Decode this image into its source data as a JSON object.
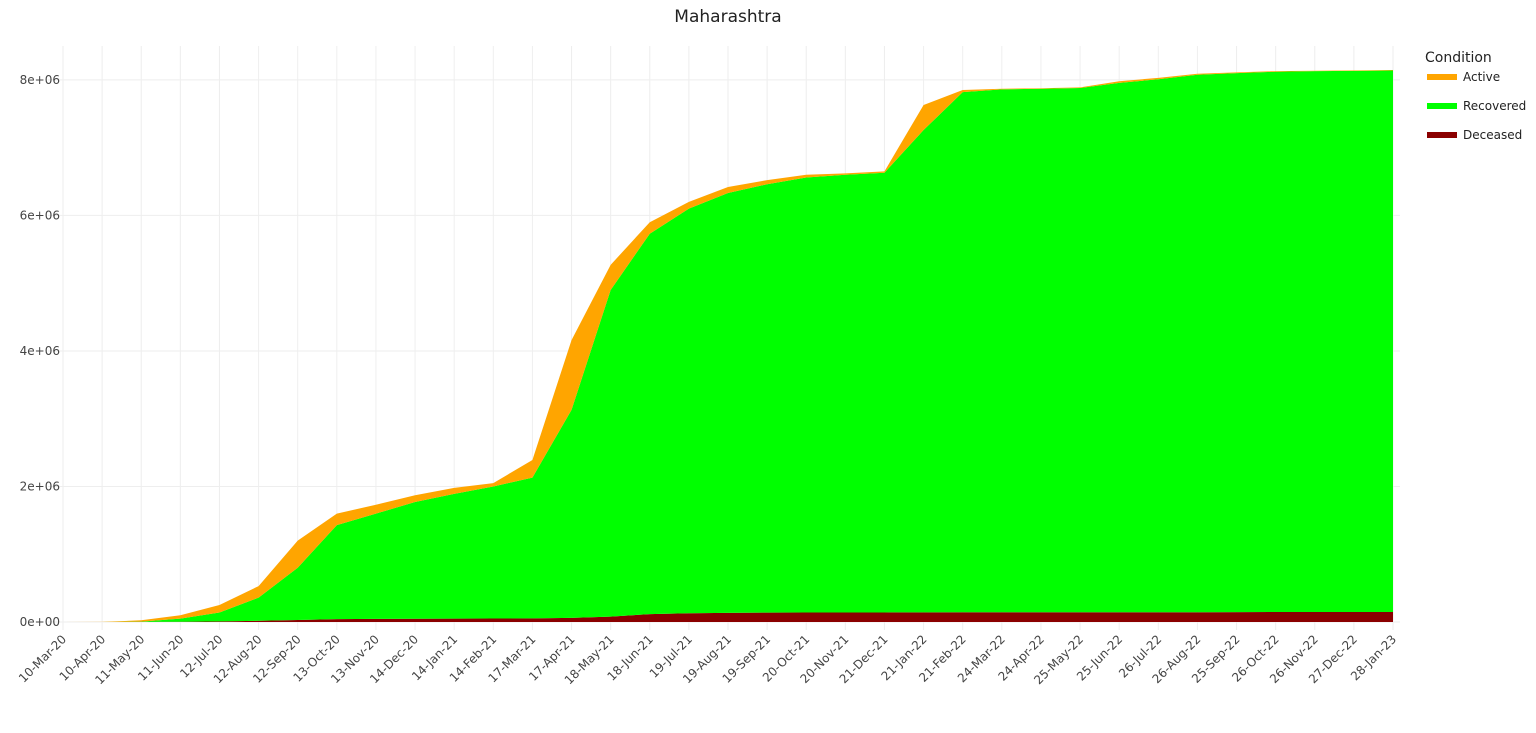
{
  "chart_data": {
    "type": "stacked_area",
    "title": "Maharashtra",
    "categories": [
      "10-Mar-20",
      "10-Apr-20",
      "11-May-20",
      "11-Jun-20",
      "12-Jul-20",
      "12-Aug-20",
      "12-Sep-20",
      "13-Oct-20",
      "13-Nov-20",
      "14-Dec-20",
      "14-Jan-21",
      "14-Feb-21",
      "17-Mar-21",
      "17-Apr-21",
      "18-May-21",
      "18-Jun-21",
      "19-Jul-21",
      "19-Aug-21",
      "19-Sep-21",
      "20-Oct-21",
      "20-Nov-21",
      "21-Dec-21",
      "21-Jan-22",
      "21-Feb-22",
      "24-Mar-22",
      "24-Apr-22",
      "25-May-22",
      "25-Jun-22",
      "26-Jul-22",
      "26-Aug-22",
      "25-Sep-22",
      "26-Oct-22",
      "26-Nov-22",
      "27-Dec-22",
      "28-Jan-23"
    ],
    "legend_title": "Condition",
    "series": [
      {
        "name": "Active",
        "color": "#ffa500",
        "values": [
          0,
          800,
          20000,
          50000,
          110000,
          170000,
          400000,
          170000,
          130000,
          100000,
          90000,
          50000,
          260000,
          1030000,
          370000,
          170000,
          100000,
          90000,
          60000,
          40000,
          20000,
          20000,
          370000,
          30000,
          10000,
          6000,
          10000,
          25000,
          20000,
          15000,
          10000,
          10000,
          5000,
          7000,
          7000
        ]
      },
      {
        "name": "Recovered",
        "color": "#00ff00",
        "values": [
          0,
          150,
          4000,
          46000,
          130000,
          342000,
          770000,
          1388000,
          1554000,
          1722000,
          1840000,
          1949000,
          2077000,
          3070000,
          4820000,
          5613000,
          5970000,
          6195000,
          6322000,
          6420000,
          6459000,
          6489000,
          7118000,
          7677000,
          7716500,
          7726300,
          7736200,
          7811200,
          7866000,
          7930500,
          7955000,
          7971800,
          7981600,
          7984600,
          7989600
        ]
      },
      {
        "name": "Deceased",
        "color": "#8b0000",
        "values": [
          0,
          50,
          1000,
          4000,
          10000,
          18000,
          30000,
          42000,
          46000,
          48000,
          50000,
          51000,
          53000,
          60000,
          80000,
          117000,
          130000,
          135000,
          138000,
          140000,
          141000,
          141000,
          142000,
          143000,
          143500,
          143700,
          143800,
          143800,
          144000,
          144500,
          145000,
          148200,
          148400,
          148400,
          148400
        ]
      }
    ],
    "ylim": [
      0,
      8500000
    ],
    "yticks": [
      {
        "value": 0,
        "label": "0e+00"
      },
      {
        "value": 2000000,
        "label": "2e+06"
      },
      {
        "value": 4000000,
        "label": "4e+06"
      },
      {
        "value": 6000000,
        "label": "6e+06"
      },
      {
        "value": 8000000,
        "label": "8e+06"
      }
    ],
    "grid": true
  }
}
